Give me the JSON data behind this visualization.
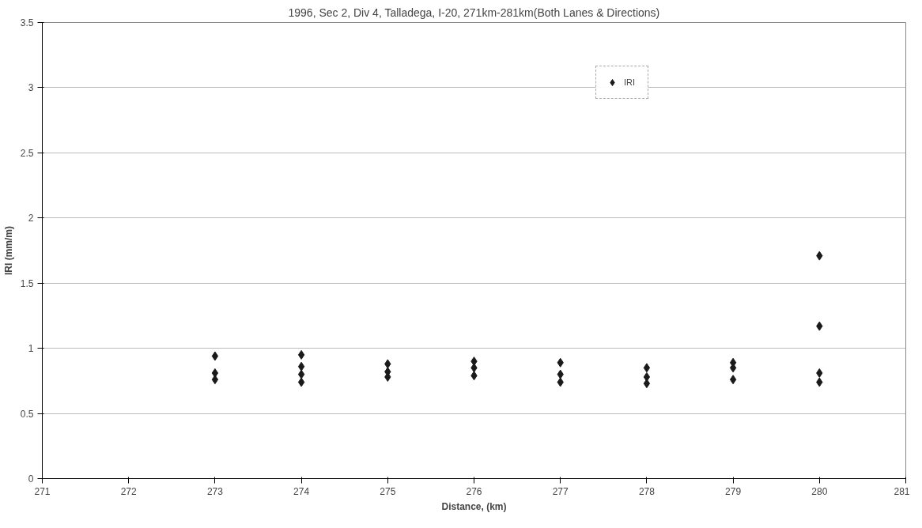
{
  "chart_data": {
    "type": "scatter",
    "title": "1996, Sec 2, Div 4, Talladega, I-20, 271km-281km(Both Lanes & Directions)",
    "xlabel": "Distance, (km)",
    "ylabel": "IRI (mm/m)",
    "series": [
      {
        "name": "IRI",
        "color": "#1a1a1a",
        "x": [
          273,
          273,
          273,
          274,
          274,
          274,
          274,
          275,
          275,
          275,
          276,
          276,
          276,
          277,
          277,
          277,
          278,
          278,
          278,
          279,
          279,
          279,
          280,
          280,
          280,
          280
        ],
        "values": [
          0.94,
          0.81,
          0.76,
          0.95,
          0.86,
          0.8,
          0.74,
          0.88,
          0.82,
          0.78,
          0.9,
          0.85,
          0.79,
          0.89,
          0.8,
          0.74,
          0.85,
          0.78,
          0.73,
          0.89,
          0.85,
          0.76,
          1.71,
          1.17,
          0.81,
          0.74
        ]
      }
    ],
    "xlim": [
      271,
      281
    ],
    "xticks": [
      271,
      272,
      273,
      274,
      275,
      276,
      277,
      278,
      279,
      280,
      281
    ],
    "ylim": [
      0,
      3.5
    ],
    "yticks": [
      0,
      0.5,
      1,
      1.5,
      2,
      2.5,
      3,
      3.5
    ],
    "grid": "y",
    "legend": "top right",
    "marker": "diamond"
  }
}
